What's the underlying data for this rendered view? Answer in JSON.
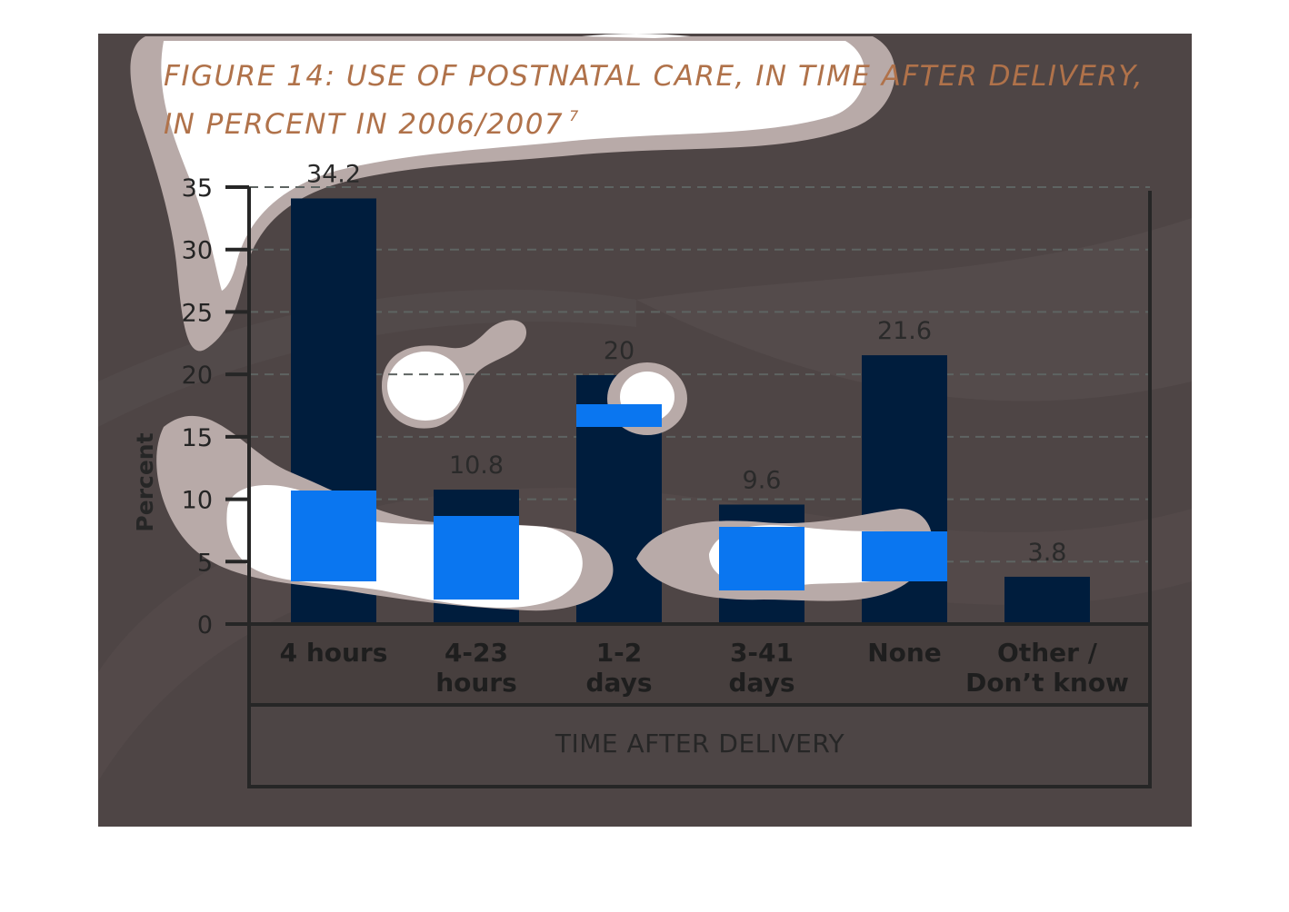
{
  "title": {
    "line1": "FIGURE 14: USE OF POSTNATAL CARE, IN TIME AFTER DELIVERY,",
    "line2": "IN PERCENT IN 2006/2007",
    "footnote": "7"
  },
  "colors": {
    "panel_background": "#4e4545",
    "title": "#b0724a",
    "bar": "#001d3d",
    "highlight": "#0a76f0",
    "smudge": "#a99a99",
    "axis": "#262626",
    "gridline": "#5e6462"
  },
  "chart_data": {
    "type": "bar",
    "title": "FIGURE 14: USE OF POSTNATAL CARE, IN TIME AFTER DELIVERY, IN PERCENT IN 2006/2007",
    "xlabel": "TIME AFTER DELIVERY",
    "ylabel": "Percent",
    "ylim": [
      0,
      35
    ],
    "yticks": [
      0,
      5,
      10,
      15,
      20,
      25,
      30,
      35
    ],
    "grid": true,
    "categories": [
      [
        "4 hours"
      ],
      [
        "4-23",
        "hours"
      ],
      [
        "1-2",
        "days"
      ],
      [
        "3-41",
        "days"
      ],
      [
        "None"
      ],
      [
        "Other /",
        "Don’t know"
      ]
    ],
    "values": [
      34.2,
      10.8,
      20,
      9.6,
      21.6,
      3.8
    ],
    "value_labels": [
      "34.2",
      "10.8",
      "20",
      "9.6",
      "21.6",
      "3.8"
    ]
  }
}
